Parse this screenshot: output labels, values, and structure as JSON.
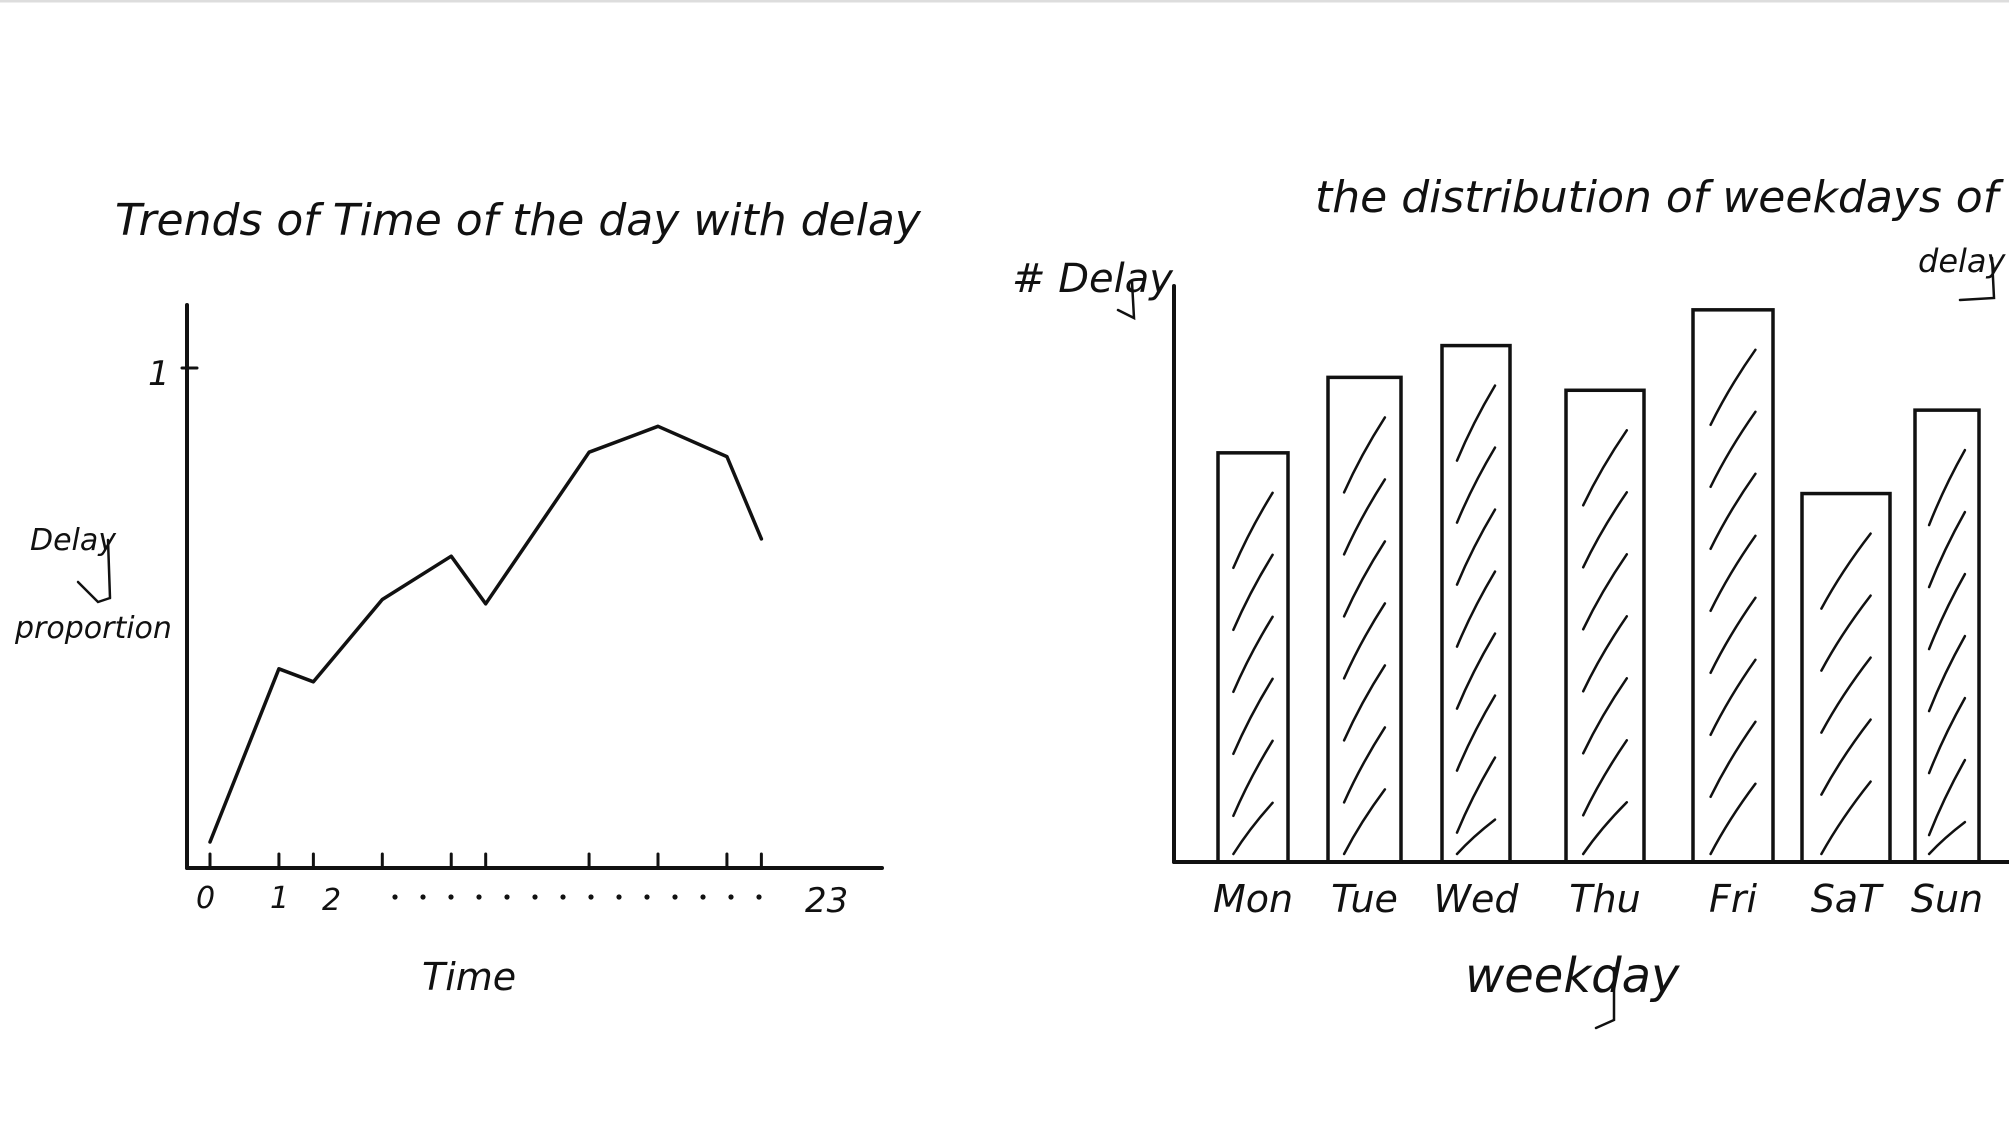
{
  "colors": {
    "ink": "#111111",
    "background": "#ffffff",
    "top_border": "#dddddd"
  },
  "chart_data": [
    {
      "type": "line",
      "title": "Trends of Time of the day with delay",
      "xlabel": "Time",
      "ylabel_line1": "Delay",
      "ylabel_line2": "proportion",
      "x_tick_labels": {
        "start": "0",
        "one": "1",
        "two": "2",
        "end": "23"
      },
      "y_tick_label": "1",
      "x": [
        0,
        2,
        3,
        5,
        7,
        8,
        11,
        13,
        15,
        16
      ],
      "values": [
        0.06,
        0.46,
        0.43,
        0.62,
        0.72,
        0.61,
        0.96,
        1.02,
        0.95,
        0.76
      ],
      "xlim": [
        0,
        19.5
      ],
      "ylim": [
        0,
        1.3
      ],
      "grid": false
    },
    {
      "type": "bar",
      "title_line1": "the distribution of weekdays of",
      "title_line2": "delay",
      "ylabel": "# Delay",
      "xlabel": "weekday",
      "categories": [
        "Mon",
        "Tue",
        "Wed",
        "Thu",
        "Fri",
        "SaT",
        "Sun"
      ],
      "values": [
        412,
        488,
        520,
        475,
        556,
        371,
        455
      ],
      "ylim": [
        0,
        580
      ],
      "grid": false
    }
  ]
}
